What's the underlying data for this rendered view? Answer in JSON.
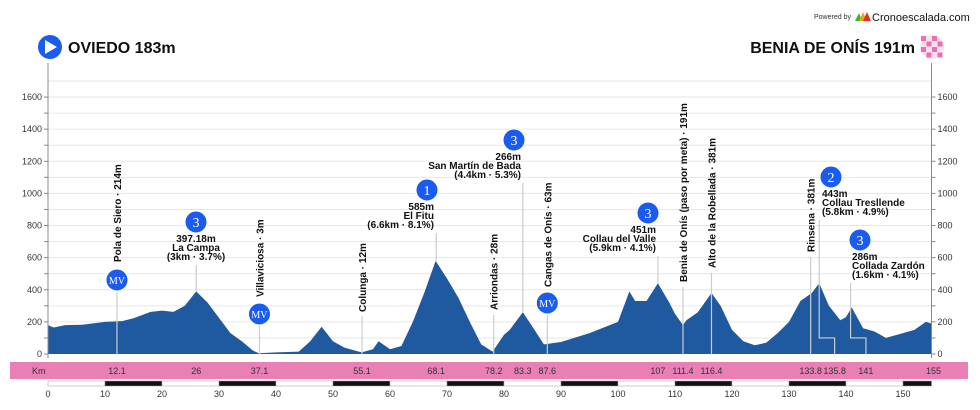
{
  "header": {
    "powered_by": "Powered by",
    "brand": "Cronoescalada.com",
    "start": "OVIEDO 183m",
    "finish": "BENIA DE ONÍS 191m",
    "start_icon": "play-circle-icon",
    "finish_icon": "checkered-flag-icon"
  },
  "chart_data": {
    "type": "area",
    "title": "",
    "xlabel": "Km",
    "ylabel": "",
    "xlim": [
      0,
      155
    ],
    "ylim": [
      0,
      1700
    ],
    "grid": true,
    "y_ticks": [
      0,
      200,
      400,
      600,
      800,
      1000,
      1200,
      1400,
      1600
    ],
    "x_ticks": [
      0,
      10,
      20,
      30,
      40,
      50,
      60,
      70,
      80,
      90,
      100,
      110,
      120,
      130,
      140,
      150
    ],
    "colors": {
      "fill": "#1f5aa0",
      "bar": "#ea7fb5",
      "badge": "#1a5cf0"
    },
    "profile": [
      [
        0,
        180
      ],
      [
        1,
        165
      ],
      [
        3,
        180
      ],
      [
        6,
        182
      ],
      [
        10,
        200
      ],
      [
        13,
        205
      ],
      [
        15,
        222
      ],
      [
        18,
        262
      ],
      [
        20,
        270
      ],
      [
        22,
        262
      ],
      [
        24,
        300
      ],
      [
        26,
        390
      ],
      [
        28,
        320
      ],
      [
        30,
        225
      ],
      [
        32,
        130
      ],
      [
        34,
        80
      ],
      [
        36,
        20
      ],
      [
        37,
        5
      ],
      [
        40,
        10
      ],
      [
        44,
        15
      ],
      [
        46,
        80
      ],
      [
        48,
        170
      ],
      [
        50,
        80
      ],
      [
        52,
        40
      ],
      [
        55,
        10
      ],
      [
        57,
        30
      ],
      [
        58,
        80
      ],
      [
        60,
        30
      ],
      [
        62,
        50
      ],
      [
        64,
        200
      ],
      [
        66,
        380
      ],
      [
        68,
        580
      ],
      [
        70,
        470
      ],
      [
        72,
        350
      ],
      [
        74,
        200
      ],
      [
        76,
        60
      ],
      [
        78,
        15
      ],
      [
        80,
        120
      ],
      [
        81,
        150
      ],
      [
        83.3,
        260
      ],
      [
        85,
        170
      ],
      [
        87,
        60
      ],
      [
        90,
        75
      ],
      [
        95,
        130
      ],
      [
        100,
        200
      ],
      [
        102,
        390
      ],
      [
        103,
        330
      ],
      [
        105,
        330
      ],
      [
        107,
        440
      ],
      [
        109,
        320
      ],
      [
        110,
        250
      ],
      [
        111.4,
        180
      ],
      [
        112,
        210
      ],
      [
        114,
        260
      ],
      [
        116.4,
        380
      ],
      [
        118,
        300
      ],
      [
        120,
        150
      ],
      [
        122,
        80
      ],
      [
        124,
        55
      ],
      [
        126,
        70
      ],
      [
        128,
        130
      ],
      [
        130,
        200
      ],
      [
        132,
        330
      ],
      [
        134,
        380
      ],
      [
        135.3,
        440
      ],
      [
        137,
        300
      ],
      [
        139,
        210
      ],
      [
        140,
        230
      ],
      [
        141,
        290
      ],
      [
        143,
        160
      ],
      [
        145,
        140
      ],
      [
        147,
        100
      ],
      [
        150,
        130
      ],
      [
        152,
        150
      ],
      [
        154,
        200
      ],
      [
        155,
        190
      ]
    ],
    "km_label": "Km",
    "km_marks": [
      "12.1",
      "26",
      "37.1",
      "55.1",
      "68.1",
      "78.2",
      "83.3",
      "87.6",
      "107",
      "111.4",
      "116.4",
      "133.8",
      "135.8",
      "141",
      "155"
    ],
    "places": [
      {
        "km": 12.1,
        "text": "Pola de Siero · 214m",
        "badge": "MV"
      },
      {
        "km": 37.1,
        "text": "Villaviciosa · 3m",
        "badge": "MV"
      },
      {
        "km": 55.1,
        "text": "Colunga · 12m"
      },
      {
        "km": 78.2,
        "text": "Arriondas · 28m"
      },
      {
        "km": 87.6,
        "text": "Cangas de Onís · 63m",
        "badge": "MV"
      },
      {
        "km": 111.4,
        "text": "Benia de Onís (paso por meta) · 191m"
      },
      {
        "km": 116.4,
        "text": "Alto de la Robellada · 381m"
      },
      {
        "km": 133.8,
        "text": "Rinsena · 381m"
      }
    ],
    "climbs": [
      {
        "km": 26,
        "category": "3",
        "alt": "397.18m",
        "name": "La Campa",
        "info": "(3km · 3.7%)"
      },
      {
        "km": 68.1,
        "category": "1",
        "alt": "585m",
        "name": "El Fitu",
        "info": "(6.6km · 8.1%)"
      },
      {
        "km": 83.3,
        "category": "3",
        "alt": "266m",
        "name": "San Martín de Bada",
        "info": "(4.4km · 5.3%)"
      },
      {
        "km": 107,
        "category": "3",
        "alt": "451m",
        "name": "Collau del Valle",
        "info": "(5.9km · 4.1%)"
      },
      {
        "km": 135.8,
        "category": "2",
        "alt": "443m",
        "name": "Collau Tresllende",
        "info": "(5.8km · 4.9%)"
      },
      {
        "km": 141,
        "category": "3",
        "alt": "286m",
        "name": "Collada Zardón",
        "info": "(1.6km · 4.1%)"
      }
    ]
  }
}
